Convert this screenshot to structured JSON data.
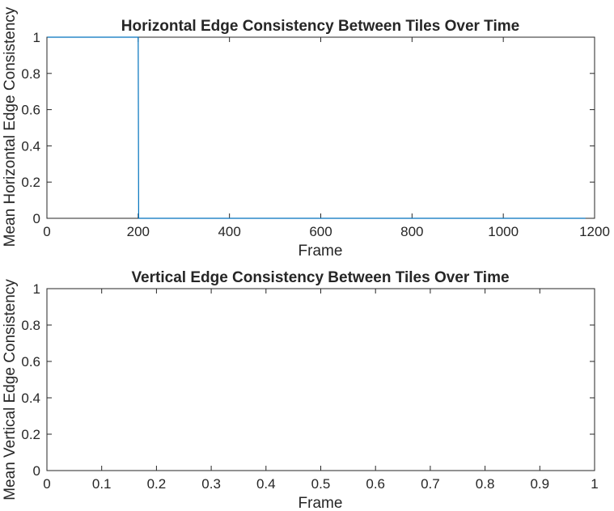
{
  "chart_data": [
    {
      "type": "line",
      "title": "Horizontal Edge Consistency Between Tiles Over Time",
      "xlabel": "Frame",
      "ylabel": "Mean Horizontal Edge Consistency",
      "xlim": [
        0,
        1200
      ],
      "ylim": [
        0,
        1
      ],
      "xticks": [
        "0",
        "200",
        "400",
        "600",
        "800",
        "1000",
        "1200"
      ],
      "yticks": [
        "0",
        "0.2",
        "0.4",
        "0.6",
        "0.8",
        "1"
      ],
      "grid": false,
      "series": [
        {
          "color": "#0072BD",
          "x": [
            1,
            200,
            201,
            1180
          ],
          "y": [
            1,
            1,
            0,
            0
          ]
        }
      ]
    },
    {
      "type": "line",
      "title": "Vertical Edge Consistency Between Tiles Over Time",
      "xlabel": "Frame",
      "ylabel": "Mean Vertical Edge Consistency",
      "xlim": [
        0,
        1
      ],
      "ylim": [
        0,
        1
      ],
      "xticks": [
        "0",
        "0.1",
        "0.2",
        "0.3",
        "0.4",
        "0.5",
        "0.6",
        "0.7",
        "0.8",
        "0.9",
        "1"
      ],
      "yticks": [
        "0",
        "0.2",
        "0.4",
        "0.6",
        "0.8",
        "1"
      ],
      "grid": false,
      "series": []
    }
  ]
}
